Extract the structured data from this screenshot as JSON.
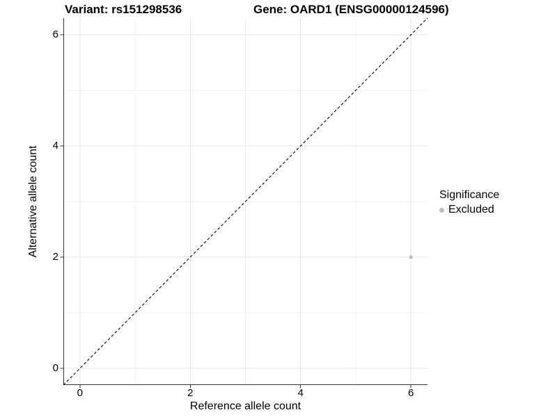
{
  "header": {
    "variant_title": "Variant: rs151298536",
    "gene_title": "Gene: OARD1 (ENSG00000124596)"
  },
  "legend": {
    "title": "Significance",
    "items": [
      {
        "label": "Excluded",
        "color": "#bebebe"
      }
    ]
  },
  "chart_data": {
    "type": "scatter",
    "title": "",
    "xlabel": "Reference allele count",
    "ylabel": "Alternative allele count",
    "xlim": [
      -0.3,
      6.3
    ],
    "ylim": [
      -0.3,
      6.3
    ],
    "x_ticks": [
      0,
      2,
      4,
      6
    ],
    "y_ticks": [
      0,
      2,
      4,
      6
    ],
    "x_minor_gridlines": [
      1,
      3,
      5
    ],
    "y_minor_gridlines": [
      1,
      3,
      5
    ],
    "grid": "on",
    "legend_position": "right",
    "series": [
      {
        "name": "Excluded",
        "color": "#bebebe",
        "point_radius": 2.6,
        "points": [
          {
            "x": 6,
            "y": 2
          }
        ]
      }
    ],
    "reference_line": {
      "kind": "identity",
      "from": [
        -0.3,
        -0.3
      ],
      "to": [
        6.3,
        6.3
      ],
      "style": "dashed",
      "color": "#000000"
    },
    "colors": {
      "panel_background": "#ffffff",
      "major_grid": "#e4e4e4",
      "minor_grid": "#efefef",
      "axis_line": "#333333",
      "tick_mark": "#333333"
    }
  }
}
